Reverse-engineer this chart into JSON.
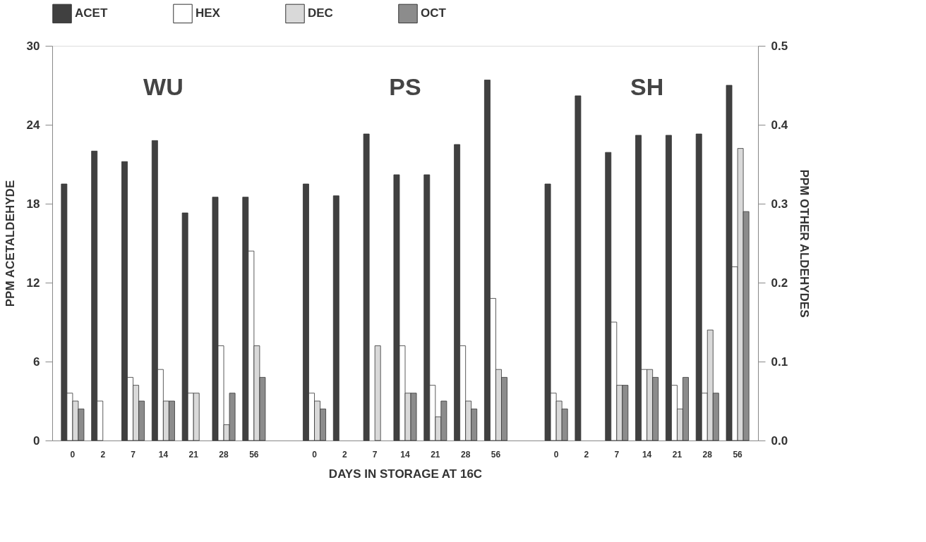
{
  "chart_data": {
    "type": "bar",
    "xlabel": "DAYS IN STORAGE AT 16C",
    "ylabel": "PPM ACETALDEHYDE",
    "y2label": "PPM OTHER ALDEHYDES",
    "categories": [
      "0",
      "2",
      "7",
      "14",
      "21",
      "28",
      "56",
      null,
      "0",
      "2",
      "7",
      "14",
      "21",
      "28",
      "56",
      null,
      "0",
      "2",
      "7",
      "14",
      "21",
      "28",
      "56"
    ],
    "series": [
      {
        "name": "ACET",
        "color": "#404040",
        "values": [
          19.5,
          22.0,
          21.2,
          22.8,
          17.3,
          18.5,
          18.5,
          null,
          19.5,
          18.6,
          23.3,
          20.2,
          20.2,
          22.5,
          27.4,
          null,
          19.5,
          26.2,
          21.9,
          23.2,
          23.2,
          23.3,
          27.0
        ]
      },
      {
        "name": "HEX",
        "color": "#ffffff",
        "axis": "y2",
        "values": [
          0.06,
          0.05,
          0.08,
          0.09,
          0.06,
          0.12,
          0.24,
          null,
          0.06,
          null,
          null,
          0.12,
          0.07,
          0.12,
          0.18,
          null,
          0.06,
          null,
          0.15,
          0.09,
          0.07,
          0.06,
          0.22
        ]
      },
      {
        "name": "DEC",
        "color": "#d9d9d9",
        "axis": "y2",
        "values": [
          0.05,
          null,
          0.07,
          0.05,
          0.06,
          0.02,
          0.12,
          null,
          0.05,
          null,
          0.12,
          0.06,
          0.03,
          0.05,
          0.09,
          null,
          0.05,
          null,
          0.07,
          0.09,
          0.04,
          0.14,
          0.37
        ]
      },
      {
        "name": "OCT",
        "color": "#8c8c8c",
        "axis": "y2",
        "values": [
          0.04,
          null,
          0.05,
          0.05,
          null,
          0.06,
          0.08,
          null,
          0.04,
          null,
          null,
          0.06,
          0.05,
          0.04,
          0.08,
          null,
          0.04,
          null,
          0.07,
          0.08,
          0.08,
          0.06,
          0.29
        ]
      }
    ],
    "ylim": [
      0,
      30
    ],
    "yticks": [
      0,
      6,
      12,
      18,
      24,
      30
    ],
    "y2lim": [
      0,
      0.5
    ],
    "y2ticks": [
      {
        "value": 0,
        "label": "0.0"
      },
      {
        "value": 0.1,
        "label": "0.1"
      },
      {
        "value": 0.2,
        "label": "0.2"
      },
      {
        "value": 0.3,
        "label": "0.3"
      },
      {
        "value": 0.4,
        "label": "0.4"
      },
      {
        "value": 0.5,
        "label": "0.5"
      }
    ],
    "annotations": [
      "WU",
      "PS",
      "SH"
    ],
    "legend": "top",
    "grid": false
  }
}
